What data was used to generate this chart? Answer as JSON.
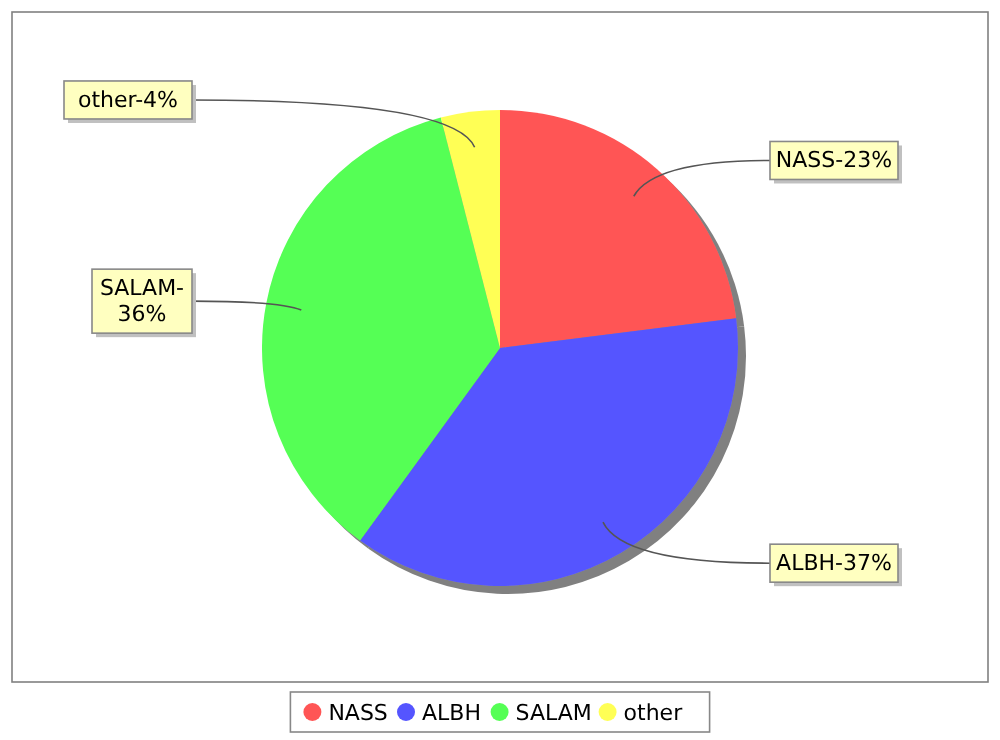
{
  "chart_data": {
    "type": "pie",
    "categories": [
      "NASS",
      "ALBH",
      "SALAM",
      "other"
    ],
    "values": [
      23,
      37,
      36,
      4
    ],
    "colors": [
      "#ff5555",
      "#5555ff",
      "#55ff55",
      "#ffff55"
    ],
    "value_labels": [
      "NASS-23%",
      "ALBH-37%",
      "SALAM-36%",
      "other-4%"
    ],
    "legend": "bottom"
  }
}
